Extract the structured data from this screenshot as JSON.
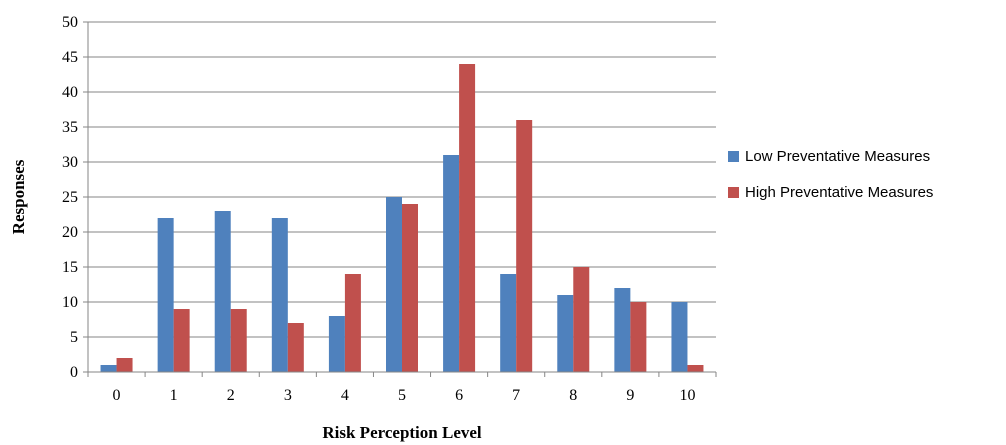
{
  "chart_data": {
    "type": "bar",
    "xlabel": "Risk Perception Level",
    "ylabel": "Responses",
    "categories": [
      "0",
      "1",
      "2",
      "3",
      "4",
      "5",
      "6",
      "7",
      "8",
      "9",
      "10"
    ],
    "ylim": [
      0,
      50
    ],
    "yticks": [
      "0",
      "5",
      "10",
      "15",
      "20",
      "25",
      "30",
      "35",
      "40",
      "45",
      "50"
    ],
    "grid": true,
    "legend_position": "right",
    "series": [
      {
        "name": "Low Preventative Measures",
        "color": "#4F81BD",
        "values": [
          1,
          22,
          23,
          22,
          8,
          25,
          31,
          14,
          11,
          12,
          10
        ]
      },
      {
        "name": "High Preventative Measures",
        "color": "#C0504D",
        "values": [
          2,
          9,
          9,
          7,
          14,
          24,
          44,
          36,
          15,
          10,
          1
        ]
      }
    ]
  }
}
